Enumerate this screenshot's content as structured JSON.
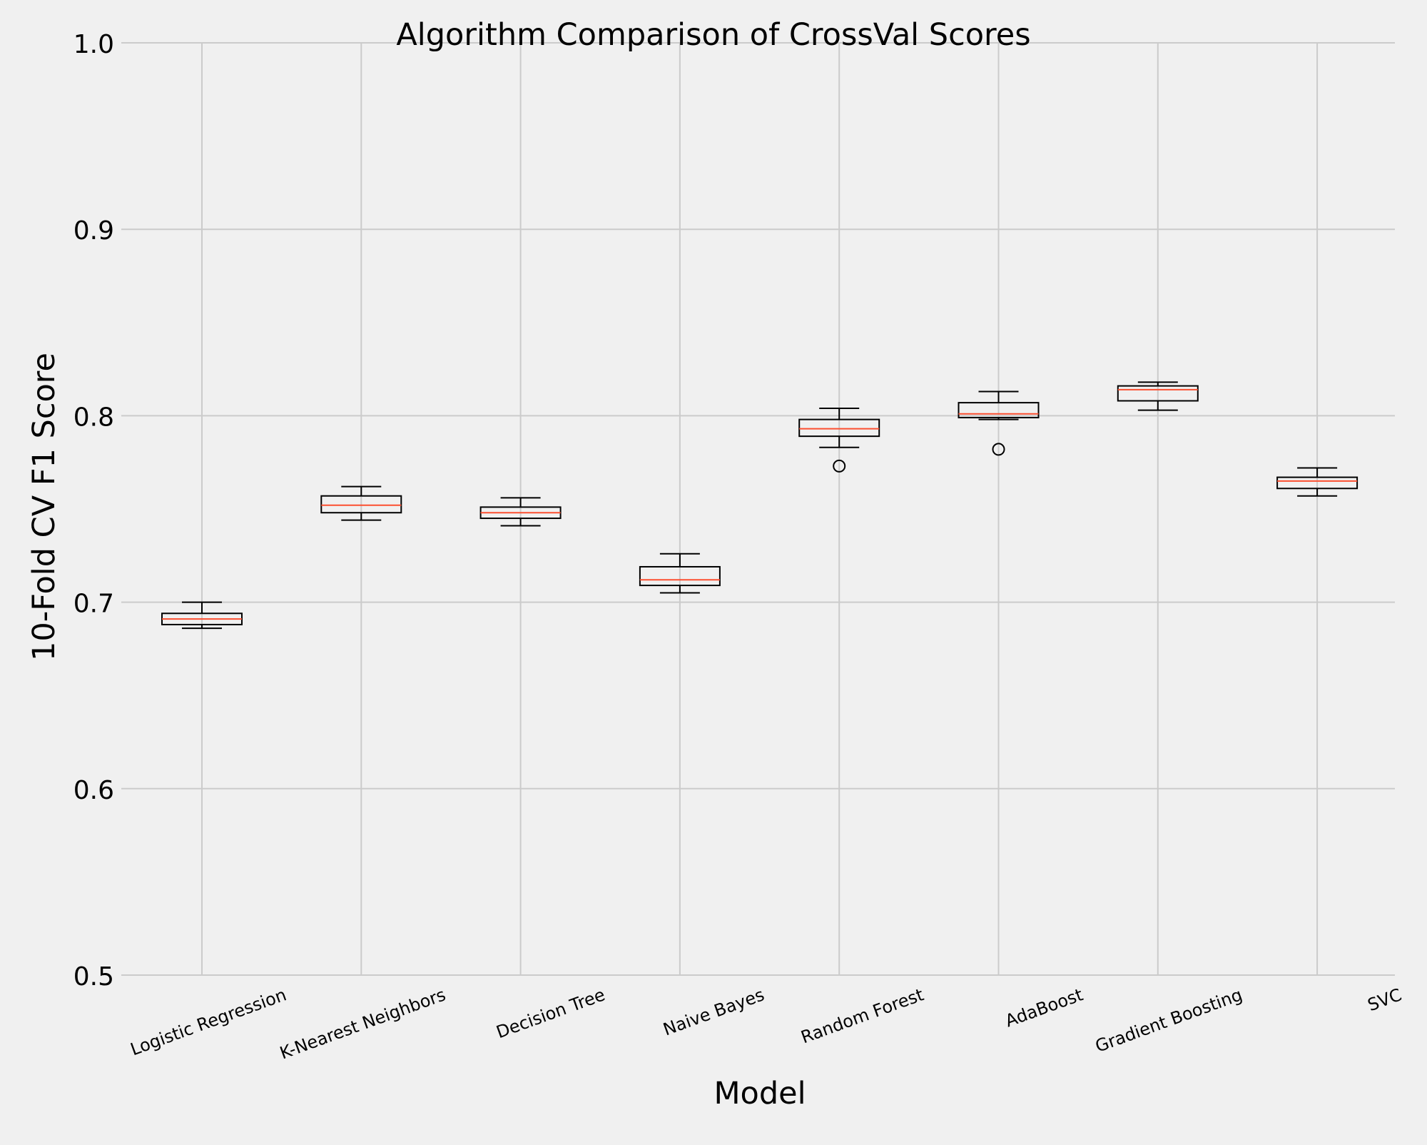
{
  "chart_data": {
    "type": "box",
    "title": "Algorithm Comparison of CrossVal Scores",
    "xlabel": "Model",
    "ylabel": "10-Fold CV F1 Score",
    "ylim": [
      0.5,
      1.0
    ],
    "yticks": [
      "0.5",
      "0.6",
      "0.7",
      "0.8",
      "0.9",
      "1.0"
    ],
    "grid": true,
    "colors": {
      "background": "#f0f0f0",
      "grid": "#cbcbcb",
      "box": "#000000",
      "median": "#fc4f30"
    },
    "categories": [
      "Logistic Regression",
      "K-Nearest Neighbors",
      "Decision Tree",
      "Naive Bayes",
      "Random Forest",
      "AdaBoost",
      "Gradient Boosting",
      "SVC"
    ],
    "boxes": [
      {
        "whisker_low": 0.686,
        "q1": 0.688,
        "median": 0.691,
        "q3": 0.694,
        "whisker_high": 0.7,
        "outliers": []
      },
      {
        "whisker_low": 0.744,
        "q1": 0.748,
        "median": 0.752,
        "q3": 0.757,
        "whisker_high": 0.762,
        "outliers": []
      },
      {
        "whisker_low": 0.741,
        "q1": 0.745,
        "median": 0.748,
        "q3": 0.751,
        "whisker_high": 0.756,
        "outliers": []
      },
      {
        "whisker_low": 0.705,
        "q1": 0.709,
        "median": 0.712,
        "q3": 0.719,
        "whisker_high": 0.726,
        "outliers": []
      },
      {
        "whisker_low": 0.783,
        "q1": 0.789,
        "median": 0.793,
        "q3": 0.798,
        "whisker_high": 0.804,
        "outliers": [
          0.773
        ]
      },
      {
        "whisker_low": 0.798,
        "q1": 0.799,
        "median": 0.801,
        "q3": 0.807,
        "whisker_high": 0.813,
        "outliers": [
          0.782
        ]
      },
      {
        "whisker_low": 0.803,
        "q1": 0.808,
        "median": 0.814,
        "q3": 0.816,
        "whisker_high": 0.818,
        "outliers": []
      },
      {
        "whisker_low": 0.757,
        "q1": 0.761,
        "median": 0.765,
        "q3": 0.767,
        "whisker_high": 0.772,
        "outliers": []
      }
    ]
  }
}
